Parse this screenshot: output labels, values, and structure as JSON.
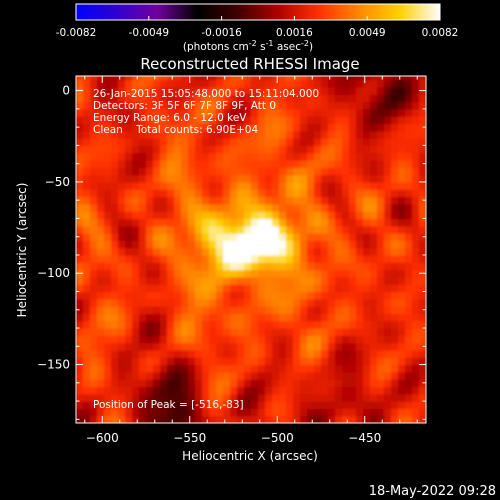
{
  "chart_data": {
    "type": "heatmap",
    "title": "Reconstructed RHESSI Image",
    "xlabel": "Heliocentric X (arcsec)",
    "ylabel": "Heliocentric Y (arcsec)",
    "xlim": [
      -615,
      -415
    ],
    "ylim": [
      -182,
      8
    ],
    "xticks": [
      -600,
      -550,
      -500,
      -450
    ],
    "yticks": [
      0,
      -50,
      -100,
      -150
    ],
    "colorbar": {
      "min": -0.0082,
      "max": 0.0082,
      "ticks": [
        "-0.0082",
        "-0.0049",
        "-0.0016",
        "0.0016",
        "0.0049",
        "0.0082"
      ],
      "unit_prefix": "(photons cm",
      "unit_exp1": "-2",
      "unit_mid1": " s",
      "unit_exp2": "-1",
      "unit_mid2": " asec",
      "unit_exp3": "-2",
      "unit_suffix": ")",
      "colors": [
        "#0000ff",
        "#3000d0",
        "#7000a0",
        "#000000",
        "#400000",
        "#b00000",
        "#ff3000",
        "#ff8800",
        "#ffd000",
        "#ffffff"
      ]
    },
    "peak": {
      "x": -516,
      "y": -83,
      "value": 0.0082
    },
    "annotations": [
      "26-Jan-2015 15:05:48.000 to 15:11:04.000",
      "Detectors: 3F 5F 6F 7F 8F 9F, Att 0",
      "Energy Range: 6.0 - 12.0 keV",
      "Clean    Total counts: 6.90E+04"
    ],
    "peak_label": "Position of Peak = [-516,-83]"
  },
  "footer": {
    "timestamp": "18-May-2022 09:28"
  }
}
